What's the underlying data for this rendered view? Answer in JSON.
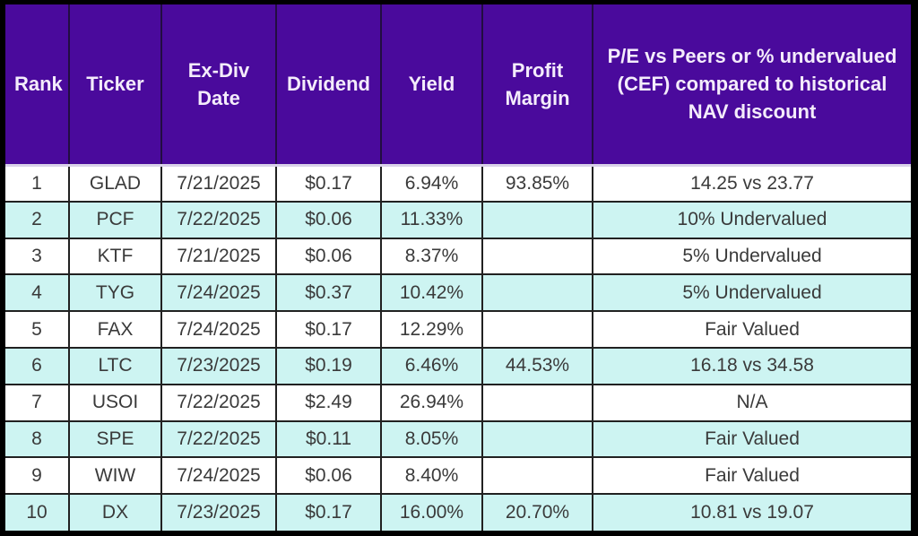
{
  "colors": {
    "header_bg": "#4A0A9C",
    "header_text": "#FFFFFF",
    "row_odd_bg": "#FFFFFF",
    "row_even_bg": "#CDF4F2",
    "body_text": "#3A3A3A",
    "grid_line": "#212121",
    "outer_border": "#000000",
    "header_divider": "#D9D2E9"
  },
  "table": {
    "columns": [
      {
        "key": "rank",
        "label": "Rank"
      },
      {
        "key": "ticker",
        "label": "Ticker"
      },
      {
        "key": "ex_div_date",
        "label": "Ex-Div Date"
      },
      {
        "key": "dividend",
        "label": "Dividend"
      },
      {
        "key": "yield",
        "label": "Yield"
      },
      {
        "key": "profit_margin",
        "label": "Profit Margin"
      },
      {
        "key": "pe_vs_peers",
        "label": "P/E vs Peers or % undervalued (CEF) compared to historical NAV discount"
      }
    ],
    "rows": [
      {
        "rank": "1",
        "ticker": "GLAD",
        "ex_div_date": "7/21/2025",
        "dividend": "$0.17",
        "yield": "6.94%",
        "profit_margin": "93.85%",
        "pe_vs_peers": "14.25 vs 23.77"
      },
      {
        "rank": "2",
        "ticker": "PCF",
        "ex_div_date": "7/22/2025",
        "dividend": "$0.06",
        "yield": "11.33%",
        "profit_margin": "",
        "pe_vs_peers": "10% Undervalued"
      },
      {
        "rank": "3",
        "ticker": "KTF",
        "ex_div_date": "7/21/2025",
        "dividend": "$0.06",
        "yield": "8.37%",
        "profit_margin": "",
        "pe_vs_peers": "5% Undervalued"
      },
      {
        "rank": "4",
        "ticker": "TYG",
        "ex_div_date": "7/24/2025",
        "dividend": "$0.37",
        "yield": "10.42%",
        "profit_margin": "",
        "pe_vs_peers": "5% Undervalued"
      },
      {
        "rank": "5",
        "ticker": "FAX",
        "ex_div_date": "7/24/2025",
        "dividend": "$0.17",
        "yield": "12.29%",
        "profit_margin": "",
        "pe_vs_peers": "Fair Valued"
      },
      {
        "rank": "6",
        "ticker": "LTC",
        "ex_div_date": "7/23/2025",
        "dividend": "$0.19",
        "yield": "6.46%",
        "profit_margin": "44.53%",
        "pe_vs_peers": "16.18 vs 34.58"
      },
      {
        "rank": "7",
        "ticker": "USOI",
        "ex_div_date": "7/22/2025",
        "dividend": "$2.49",
        "yield": "26.94%",
        "profit_margin": "",
        "pe_vs_peers": "N/A"
      },
      {
        "rank": "8",
        "ticker": "SPE",
        "ex_div_date": "7/22/2025",
        "dividend": "$0.11",
        "yield": "8.05%",
        "profit_margin": "",
        "pe_vs_peers": "Fair Valued"
      },
      {
        "rank": "9",
        "ticker": "WIW",
        "ex_div_date": "7/24/2025",
        "dividend": "$0.06",
        "yield": "8.40%",
        "profit_margin": "",
        "pe_vs_peers": "Fair Valued"
      },
      {
        "rank": "10",
        "ticker": "DX",
        "ex_div_date": "7/23/2025",
        "dividend": "$0.17",
        "yield": "16.00%",
        "profit_margin": "20.70%",
        "pe_vs_peers": "10.81 vs 19.07"
      }
    ]
  },
  "chart_data": {
    "type": "table",
    "title": "",
    "columns": [
      "Rank",
      "Ticker",
      "Ex-Div Date",
      "Dividend",
      "Yield",
      "Profit Margin",
      "P/E vs Peers or % undervalued (CEF) compared to historical NAV discount"
    ],
    "rows": [
      [
        "1",
        "GLAD",
        "7/21/2025",
        "$0.17",
        "6.94%",
        "93.85%",
        "14.25 vs 23.77"
      ],
      [
        "2",
        "PCF",
        "7/22/2025",
        "$0.06",
        "11.33%",
        "",
        "10% Undervalued"
      ],
      [
        "3",
        "KTF",
        "7/21/2025",
        "$0.06",
        "8.37%",
        "",
        "5% Undervalued"
      ],
      [
        "4",
        "TYG",
        "7/24/2025",
        "$0.37",
        "10.42%",
        "",
        "5% Undervalued"
      ],
      [
        "5",
        "FAX",
        "7/24/2025",
        "$0.17",
        "12.29%",
        "",
        "Fair Valued"
      ],
      [
        "6",
        "LTC",
        "7/23/2025",
        "$0.19",
        "6.46%",
        "44.53%",
        "16.18 vs 34.58"
      ],
      [
        "7",
        "USOI",
        "7/22/2025",
        "$2.49",
        "26.94%",
        "",
        "N/A"
      ],
      [
        "8",
        "SPE",
        "7/22/2025",
        "$0.11",
        "8.05%",
        "",
        "Fair Valued"
      ],
      [
        "9",
        "WIW",
        "7/24/2025",
        "$0.06",
        "8.40%",
        "",
        "Fair Valued"
      ],
      [
        "10",
        "DX",
        "7/23/2025",
        "$0.17",
        "16.00%",
        "20.70%",
        "10.81 vs 19.07"
      ]
    ]
  }
}
